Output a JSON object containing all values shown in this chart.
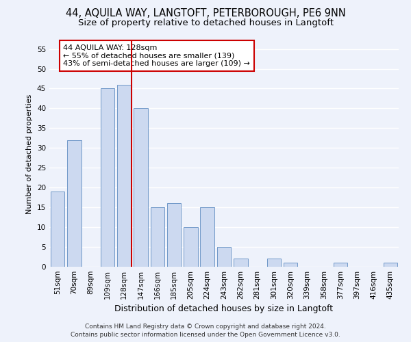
{
  "title1": "44, AQUILA WAY, LANGTOFT, PETERBOROUGH, PE6 9NN",
  "title2": "Size of property relative to detached houses in Langtoft",
  "xlabel": "Distribution of detached houses by size in Langtoft",
  "ylabel": "Number of detached properties",
  "categories": [
    "51sqm",
    "70sqm",
    "89sqm",
    "109sqm",
    "128sqm",
    "147sqm",
    "166sqm",
    "185sqm",
    "205sqm",
    "224sqm",
    "243sqm",
    "262sqm",
    "281sqm",
    "301sqm",
    "320sqm",
    "339sqm",
    "358sqm",
    "377sqm",
    "397sqm",
    "416sqm",
    "435sqm"
  ],
  "values": [
    19,
    32,
    0,
    45,
    46,
    40,
    15,
    16,
    10,
    15,
    5,
    2,
    0,
    2,
    1,
    0,
    0,
    1,
    0,
    0,
    1
  ],
  "bar_color": "#ccd9f0",
  "bar_edge_color": "#7098c8",
  "highlight_line_index": 4,
  "highlight_line_color": "#cc0000",
  "annotation_text": "44 AQUILA WAY: 128sqm\n← 55% of detached houses are smaller (139)\n43% of semi-detached houses are larger (109) →",
  "annotation_box_facecolor": "#ffffff",
  "annotation_box_edgecolor": "#cc0000",
  "ylim": [
    0,
    57
  ],
  "yticks": [
    0,
    5,
    10,
    15,
    20,
    25,
    30,
    35,
    40,
    45,
    50,
    55
  ],
  "footer1": "Contains HM Land Registry data © Crown copyright and database right 2024.",
  "footer2": "Contains public sector information licensed under the Open Government Licence v3.0.",
  "background_color": "#eef2fb",
  "grid_color": "#ffffff",
  "title1_fontsize": 10.5,
  "title2_fontsize": 9.5,
  "xlabel_fontsize": 9,
  "ylabel_fontsize": 8,
  "tick_fontsize": 7.5,
  "annotation_fontsize": 8,
  "footer_fontsize": 6.5
}
